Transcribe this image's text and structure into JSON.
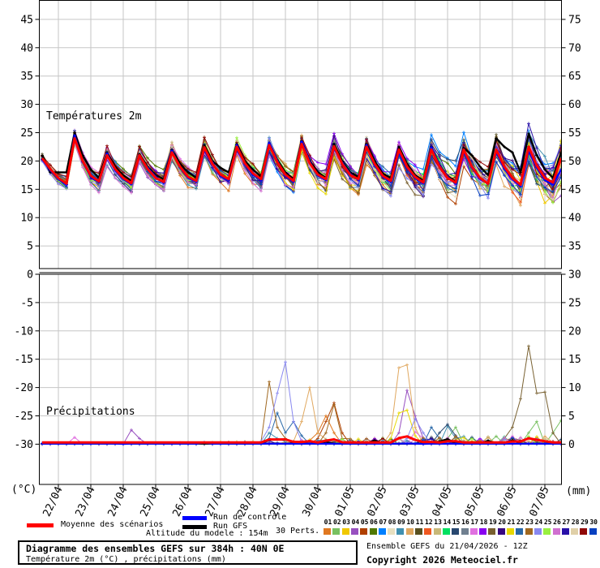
{
  "chart": {
    "temp_section_label": "Températures 2m",
    "precip_section_label": "Précipitations",
    "left_axis": {
      "temp_ticks": [
        45,
        40,
        35,
        30,
        25,
        20,
        15,
        10,
        5,
        0
      ],
      "precip_ticks": [
        -5,
        -10,
        -15,
        -20,
        -25,
        -30
      ],
      "unit": "(°C)"
    },
    "right_axis": {
      "temp_ticks": [
        75,
        70,
        65,
        60,
        55,
        50,
        45,
        40,
        35,
        30
      ],
      "precip_ticks": [
        25,
        20,
        15,
        10,
        5,
        0
      ],
      "unit": "(mm)"
    },
    "x_axis": {
      "dates": [
        "22/04",
        "23/04",
        "24/04",
        "25/04",
        "26/04",
        "27/04",
        "28/04",
        "29/04",
        "30/04",
        "01/05",
        "02/05",
        "03/05",
        "04/05",
        "05/05",
        "06/05",
        "07/05"
      ]
    }
  },
  "chart_data": {
    "type": "line",
    "title": "Diagramme des ensembles GEFS sur 384h : 40N 0E",
    "subtitle": "Température 2m (°C) , précipitations (mm)",
    "x_unit": "hours_from_run_start",
    "x_step": 6,
    "x_max": 384,
    "run": "Ensemble GEFS du 21/04/2026 - 12Z",
    "temperature": {
      "unit": "°C",
      "ylim_visible": [
        0,
        47
      ],
      "mean": [
        20.5,
        18.6,
        17.0,
        16.0,
        24.0,
        20.0,
        17.4,
        16.4,
        21.0,
        18.6,
        17.0,
        16.1,
        21.0,
        18.6,
        17.0,
        16.3,
        21.5,
        19.0,
        17.2,
        16.5,
        22.4,
        19.5,
        17.6,
        16.8,
        22.5,
        19.6,
        17.8,
        16.8,
        22.8,
        19.8,
        17.6,
        16.5,
        23.0,
        19.6,
        17.6,
        16.8,
        22.6,
        19.5,
        17.5,
        16.8,
        22.5,
        19.5,
        17.4,
        16.5,
        22.0,
        19.0,
        17.2,
        16.2,
        22.0,
        19.0,
        17.0,
        16.2,
        22.0,
        19.0,
        17.0,
        16.0,
        22.0,
        19.0,
        17.0,
        15.8,
        22.5,
        19.2,
        17.0,
        16.2,
        20.5
      ],
      "control": [
        20.3,
        18.4,
        16.8,
        15.8,
        24.5,
        19.8,
        17.2,
        16.2,
        21.3,
        18.4,
        16.8,
        15.9,
        20.8,
        18.8,
        17.2,
        16.1,
        21.8,
        18.8,
        17.0,
        16.3,
        22.0,
        19.7,
        17.4,
        16.6,
        22.8,
        19.4,
        17.6,
        16.6,
        23.2,
        20.0,
        17.4,
        16.3,
        23.4,
        19.8,
        17.4,
        16.6,
        22.2,
        19.7,
        17.7,
        16.6,
        22.8,
        19.3,
        17.2,
        16.3,
        21.6,
        18.8,
        17.0,
        16.0,
        22.4,
        19.2,
        17.2,
        16.0,
        21.6,
        18.8,
        16.8,
        16.0,
        21.5,
        18.6,
        16.8,
        15.5,
        21.8,
        18.8,
        16.6,
        15.8,
        18.5
      ],
      "gfs": [
        21.0,
        18.0,
        18.0,
        18.0,
        25.0,
        21.0,
        18.5,
        17.0,
        21.5,
        19.0,
        17.5,
        16.5,
        21.2,
        19.0,
        17.5,
        16.8,
        22.0,
        19.5,
        18.0,
        17.0,
        22.8,
        20.0,
        18.8,
        18.0,
        23.0,
        20.0,
        18.5,
        17.2,
        23.2,
        20.2,
        18.0,
        16.8,
        23.5,
        20.0,
        18.0,
        17.0,
        23.0,
        20.0,
        18.0,
        17.2,
        23.0,
        20.0,
        17.8,
        17.0,
        22.5,
        19.5,
        17.5,
        16.5,
        22.5,
        19.3,
        17.3,
        16.4,
        22.3,
        21.0,
        19.0,
        17.5,
        24.0,
        22.5,
        21.5,
        18.0,
        24.8,
        21.0,
        18.5,
        17.0,
        21.5
      ],
      "ensemble_spread": [
        0.4,
        0.5,
        0.7,
        0.9,
        0.9,
        0.8,
        0.9,
        1.0,
        0.9,
        0.8,
        0.9,
        1.0,
        1.0,
        0.9,
        1.0,
        1.1,
        1.0,
        0.9,
        1.0,
        1.1,
        1.1,
        1.0,
        1.1,
        1.2,
        1.1,
        1.0,
        1.2,
        1.3,
        1.2,
        1.1,
        1.3,
        1.4,
        1.3,
        1.2,
        1.4,
        1.5,
        1.4,
        1.3,
        1.5,
        1.6,
        1.5,
        1.4,
        1.6,
        1.7,
        1.6,
        1.5,
        1.7,
        1.8,
        1.8,
        1.7,
        1.9,
        2.0,
        2.0,
        1.9,
        2.1,
        2.2,
        2.2,
        2.1,
        2.3,
        2.5,
        2.6,
        2.6,
        2.9,
        3.3,
        4.2
      ]
    },
    "precipitation": {
      "unit": "mm",
      "ylim": [
        0,
        30
      ],
      "member_spikes": [
        {
          "member": 24,
          "points": [
            [
              162,
              0.5
            ],
            [
              168,
              3
            ],
            [
              174,
              9
            ],
            [
              180,
              14.5
            ],
            [
              186,
              4
            ],
            [
              192,
              0.5
            ],
            [
              270,
              1
            ],
            [
              276,
              4.5
            ],
            [
              282,
              2
            ]
          ]
        },
        {
          "member": 23,
          "points": [
            [
              162,
              0.4
            ],
            [
              168,
              11
            ],
            [
              174,
              3
            ],
            [
              180,
              1
            ],
            [
              210,
              2
            ],
            [
              216,
              7
            ],
            [
              222,
              1
            ]
          ]
        },
        {
          "member": 10,
          "points": [
            [
              186,
              0.5
            ],
            [
              192,
              4
            ],
            [
              198,
              10
            ],
            [
              204,
              2
            ],
            [
              258,
              2
            ],
            [
              264,
              13.5
            ],
            [
              270,
              14
            ],
            [
              276,
              3
            ]
          ]
        },
        {
          "member": 22,
          "points": [
            [
              168,
              1
            ],
            [
              174,
              5.5
            ],
            [
              180,
              2
            ],
            [
              186,
              4
            ],
            [
              192,
              1.5
            ],
            [
              288,
              3
            ],
            [
              294,
              1
            ]
          ]
        },
        {
          "member": 5,
          "points": [
            [
              204,
              1
            ],
            [
              210,
              4
            ],
            [
              216,
              7.3
            ],
            [
              222,
              2
            ]
          ]
        },
        {
          "member": 4,
          "points": [
            [
              66,
              2.5
            ],
            [
              72,
              1
            ],
            [
              264,
              2
            ],
            [
              270,
              9.5
            ],
            [
              276,
              5
            ],
            [
              282,
              1
            ]
          ]
        },
        {
          "member": 21,
          "points": [
            [
              258,
              1
            ],
            [
              264,
              5.5
            ],
            [
              270,
              6
            ],
            [
              276,
              1.5
            ]
          ]
        },
        {
          "member": 19,
          "points": [
            [
              342,
              1
            ],
            [
              348,
              3
            ],
            [
              354,
              8
            ],
            [
              360,
              17.3
            ],
            [
              366,
              9
            ],
            [
              372,
              9.2
            ],
            [
              378,
              2
            ]
          ]
        },
        {
          "member": 2,
          "points": [
            [
              300,
              1
            ],
            [
              306,
              3
            ],
            [
              360,
              2
            ],
            [
              366,
              4
            ],
            [
              378,
              2
            ],
            [
              384,
              4.2
            ]
          ]
        },
        {
          "member": 9,
          "points": [
            [
              168,
              2
            ],
            [
              174,
              1
            ],
            [
              300,
              3.2
            ],
            [
              306,
              1
            ]
          ]
        },
        {
          "member": 15,
          "points": [
            [
              294,
              2
            ],
            [
              300,
              3.5
            ],
            [
              306,
              1.5
            ]
          ]
        },
        {
          "member": 17,
          "points": [
            [
              24,
              1.2
            ],
            [
              276,
              2.2
            ],
            [
              282,
              1
            ]
          ]
        },
        {
          "member": 1,
          "points": [
            [
              204,
              2
            ],
            [
              210,
              5
            ],
            [
              216,
              2
            ]
          ]
        }
      ]
    },
    "members": {
      "count": 30,
      "ids": [
        "01",
        "02",
        "03",
        "04",
        "05",
        "06",
        "07",
        "08",
        "09",
        "10",
        "11",
        "12",
        "13",
        "14",
        "15",
        "16",
        "17",
        "18",
        "19",
        "20",
        "21",
        "22",
        "23",
        "24",
        "25",
        "26",
        "27",
        "28",
        "29",
        "30"
      ],
      "colors": [
        "#e07820",
        "#78c060",
        "#f0c800",
        "#9850c0",
        "#b04000",
        "#507800",
        "#0080ff",
        "#e8e0c0",
        "#4090b0",
        "#e0a860",
        "#585020",
        "#f05820",
        "#c8b878",
        "#00e060",
        "#284870",
        "#708090",
        "#e070e0",
        "#8800f0",
        "#786030",
        "#380880",
        "#e8d800",
        "#2868a8",
        "#a06820",
        "#8888f0",
        "#98f040",
        "#d070d0",
        "#2810a8",
        "#e0d0a8",
        "#900808",
        "#0840c0"
      ]
    },
    "series_colors": {
      "mean": "#ff0000",
      "control": "#0000ff",
      "gfs": "#000000"
    }
  },
  "legend": {
    "mean_label": "Moyenne des scénarios",
    "control_label": "Run de contrôle",
    "gfs_label": "Run GFS",
    "perts_label": "30 Perts."
  },
  "footer": {
    "altitude": "Altitude du modele : 154m",
    "box_title": "Diagramme des ensembles GEFS sur 384h : 40N 0E",
    "box_subtitle": "Température 2m (°C) , précipitations (mm)",
    "run_info": "Ensemble GEFS du 21/04/2026 - 12Z",
    "copyright": "Copyright 2026 Meteociel.fr"
  }
}
